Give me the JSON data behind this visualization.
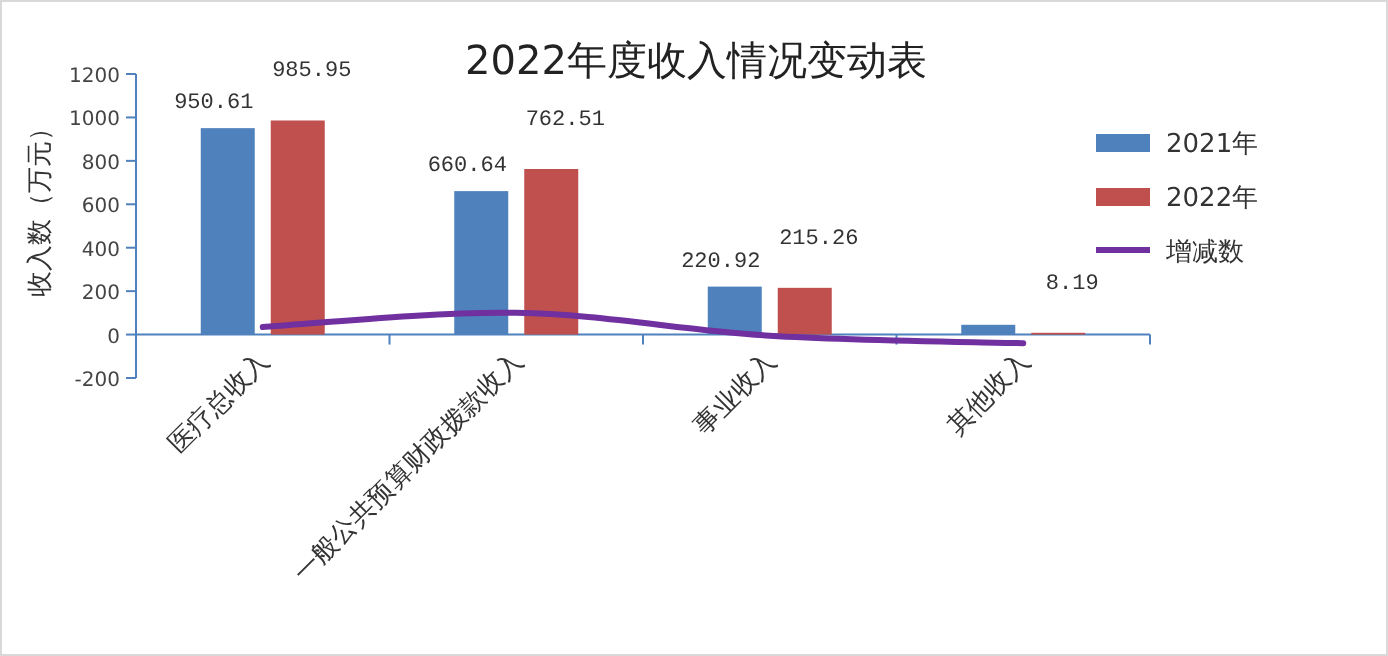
{
  "chart_data": {
    "type": "bar",
    "title": "2022年度收入情况变动表",
    "ylabel": "收入数（万元）",
    "categories": [
      "医疗总收入",
      "一般公共预算财政拨款收入",
      "事业收入",
      "其他收入"
    ],
    "series": [
      {
        "name": "2021年",
        "color": "#4f81bd",
        "values": [
          950.61,
          660.64,
          220.92,
          45
        ],
        "value_labels": [
          "950.61",
          "660.64",
          "220.92",
          null
        ]
      },
      {
        "name": "2022年",
        "color": "#c0504d",
        "values": [
          985.95,
          762.51,
          215.26,
          8.19
        ],
        "value_labels": [
          "985.95",
          "762.51",
          "215.26",
          "8.19"
        ]
      },
      {
        "name": "增减数",
        "type": "line",
        "color": "#7030a0",
        "values": [
          35,
          100,
          -5,
          -40
        ]
      }
    ],
    "ylim": [
      -200,
      1200
    ],
    "yticks": [
      -200,
      0,
      200,
      400,
      600,
      800,
      1000,
      1200
    ],
    "legend": "right",
    "grid": false,
    "marker": "none"
  }
}
